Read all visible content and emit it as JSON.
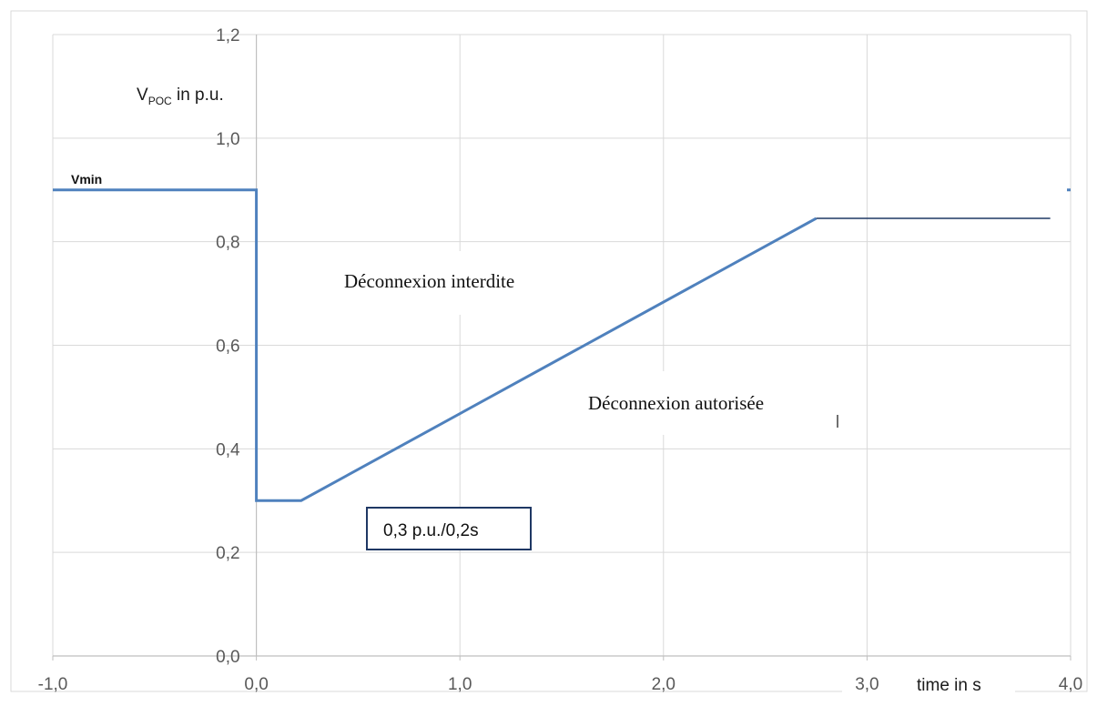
{
  "chart_data": {
    "type": "line",
    "title": "",
    "xlabel": "time in s",
    "ylabel": "V",
    "ylabel_subscript": "POC",
    "ylabel_suffix": " in p.u.",
    "xlim": [
      -1.0,
      4.0
    ],
    "ylim": [
      0.0,
      1.2
    ],
    "x_ticks": [
      -1.0,
      0.0,
      1.0,
      2.0,
      3.0,
      4.0
    ],
    "x_tick_labels": [
      "-1,0",
      "0,0",
      "1,0",
      "2,0",
      "3,0",
      "4,0"
    ],
    "y_ticks": [
      0.0,
      0.2,
      0.4,
      0.6,
      0.8,
      1.0,
      1.2
    ],
    "y_tick_labels": [
      "0,0",
      "0,2",
      "0,4",
      "0,6",
      "0,8",
      "1,0",
      "1,2"
    ],
    "grid": true,
    "series": [
      {
        "name": "",
        "color": "#4f81bd",
        "x": [
          -1.0,
          0.0,
          0.0,
          0.22,
          2.75
        ],
        "y": [
          0.9,
          0.9,
          0.3,
          0.3,
          0.845
        ]
      }
    ],
    "reference_lines": [
      {
        "x": [
          2.75,
          3.9
        ],
        "y": [
          0.845,
          0.845
        ],
        "color": "#1f3864"
      }
    ],
    "annotations": {
      "vmin": "Vmin",
      "forbidden": "Déconnexion interdite",
      "allowed": "Déconnexion autorisée",
      "box": "0,3 p.u./0,2s"
    }
  }
}
